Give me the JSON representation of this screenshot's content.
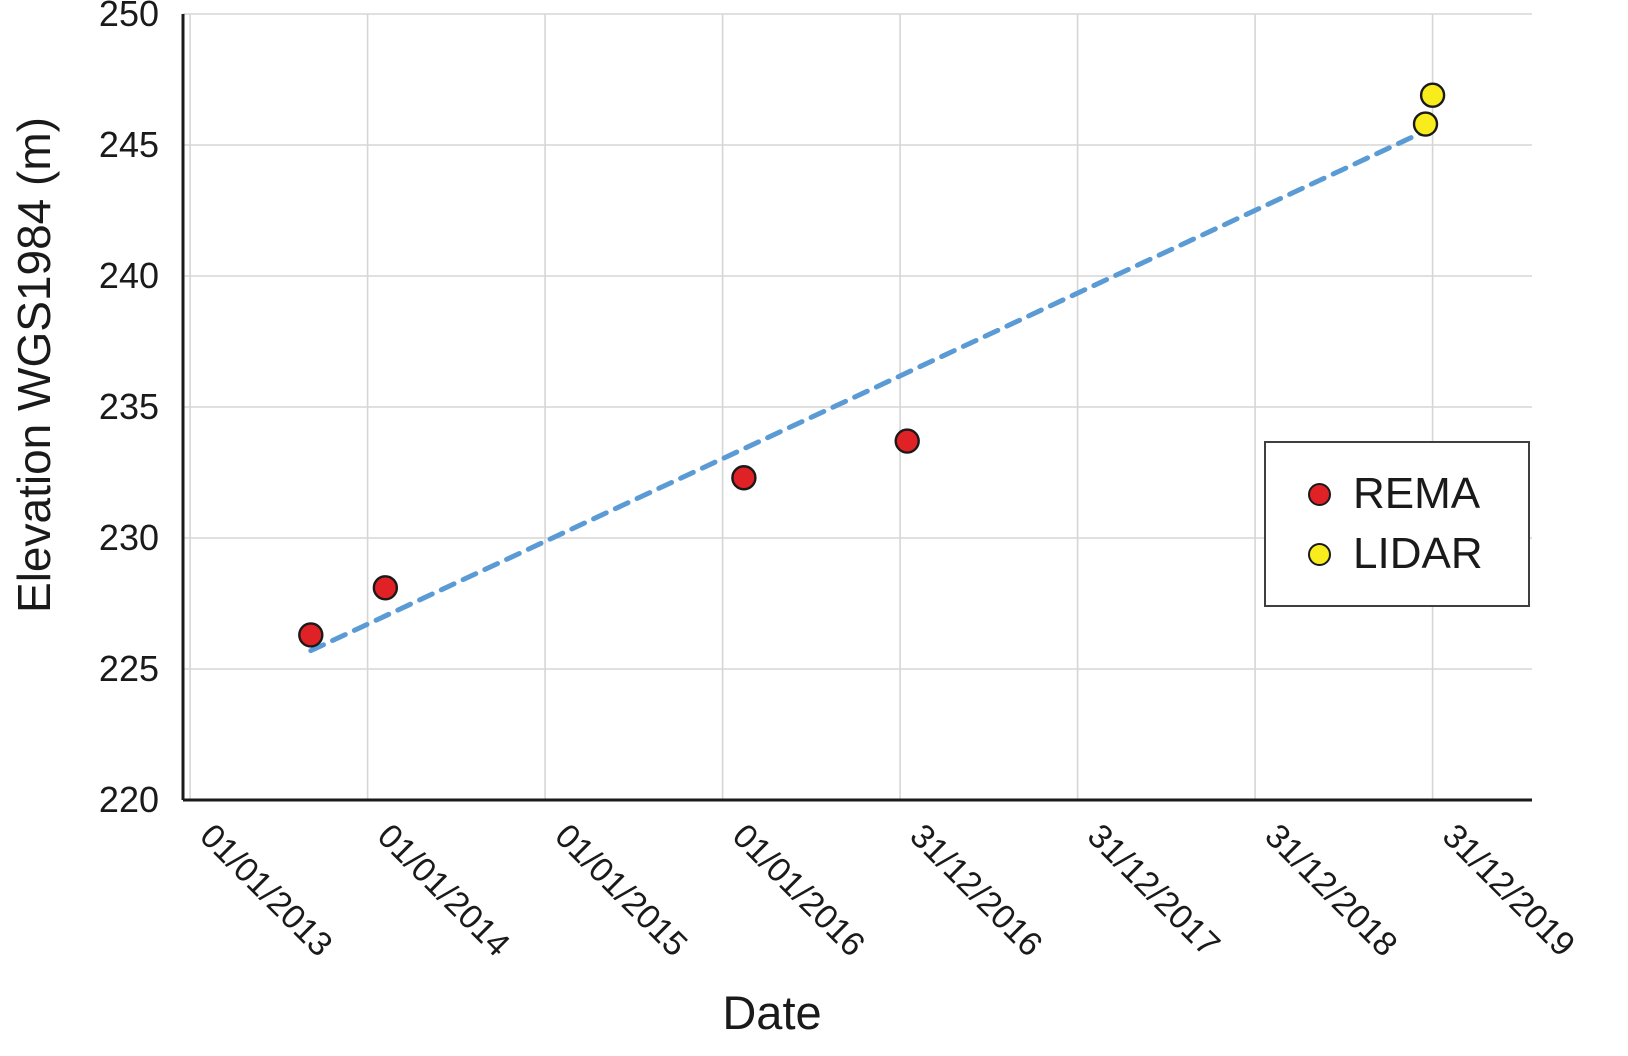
{
  "chart_data": {
    "type": "scatter",
    "title": "",
    "xlabel": "Date",
    "ylabel": "Elevation WGS1984 (m)",
    "x_unit": "decimal_year",
    "xlim": [
      2012.96,
      2020.56
    ],
    "ylim": [
      220,
      250
    ],
    "grid": true,
    "x_ticks": [
      {
        "x": 2013,
        "label": "01/01/2013"
      },
      {
        "x": 2014,
        "label": "01/01/2014"
      },
      {
        "x": 2015,
        "label": "01/01/2015"
      },
      {
        "x": 2016,
        "label": "01/01/2016"
      },
      {
        "x": 2017,
        "label": "31/12/2016"
      },
      {
        "x": 2018,
        "label": "31/12/2017"
      },
      {
        "x": 2019,
        "label": "31/12/2018"
      },
      {
        "x": 2020,
        "label": "31/12/2019"
      }
    ],
    "y_ticks": [
      220,
      225,
      230,
      235,
      240,
      245,
      250
    ],
    "series": [
      {
        "name": "REMA",
        "marker": "circle",
        "color": "#e02125",
        "points": [
          {
            "x": 2013.68,
            "y": 226.3
          },
          {
            "x": 2014.1,
            "y": 228.1
          },
          {
            "x": 2016.12,
            "y": 232.3
          },
          {
            "x": 2017.04,
            "y": 233.7
          }
        ]
      },
      {
        "name": "LIDAR",
        "marker": "circle",
        "color": "#f9ec1c",
        "points": [
          {
            "x": 2019.96,
            "y": 245.8
          },
          {
            "x": 2020.0,
            "y": 246.9
          }
        ]
      }
    ],
    "trendline": {
      "style": "dashed",
      "color": "#5b9bd5",
      "from": {
        "x": 2013.68,
        "y": 225.7
      },
      "to": {
        "x": 2019.98,
        "y": 245.6
      }
    },
    "legend": {
      "position": "middle-right",
      "entries": [
        "REMA",
        "LIDAR"
      ]
    },
    "axis_color": "#1a1a1a",
    "gridline_color": "#d6d6d6",
    "marker_outline": "#1a1a1a",
    "text_color": "#1a1a1a"
  }
}
